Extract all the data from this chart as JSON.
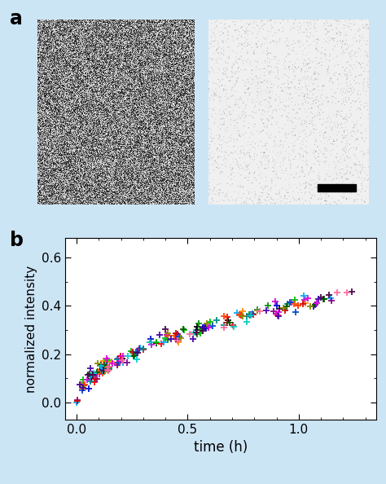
{
  "panel_a_label": "a",
  "panel_b_label": "b",
  "xlabel": "time (h)",
  "ylabel": "normalized intensity",
  "xlim": [
    -0.05,
    1.35
  ],
  "ylim": [
    -0.07,
    0.68
  ],
  "xticks": [
    0.0,
    0.5,
    1.0
  ],
  "yticks": [
    0.0,
    0.2,
    0.4,
    0.6
  ],
  "background": "#cce5f5",
  "series_colors": [
    "#000000",
    "#ff0000",
    "#0000cc",
    "#008800",
    "#cc00cc",
    "#00aaff",
    "#ff8800",
    "#880088",
    "#00bb00",
    "#008888",
    "#ff4400",
    "#cc0000",
    "#0044cc",
    "#005500",
    "#dd00dd",
    "#00cccc",
    "#888800",
    "#440044",
    "#ff6699",
    "#4400aa"
  ],
  "num_series": 20,
  "seed": 7,
  "n_points_per_series": 10,
  "t_max": 1.3,
  "amplitude": 0.41,
  "power": 0.5
}
